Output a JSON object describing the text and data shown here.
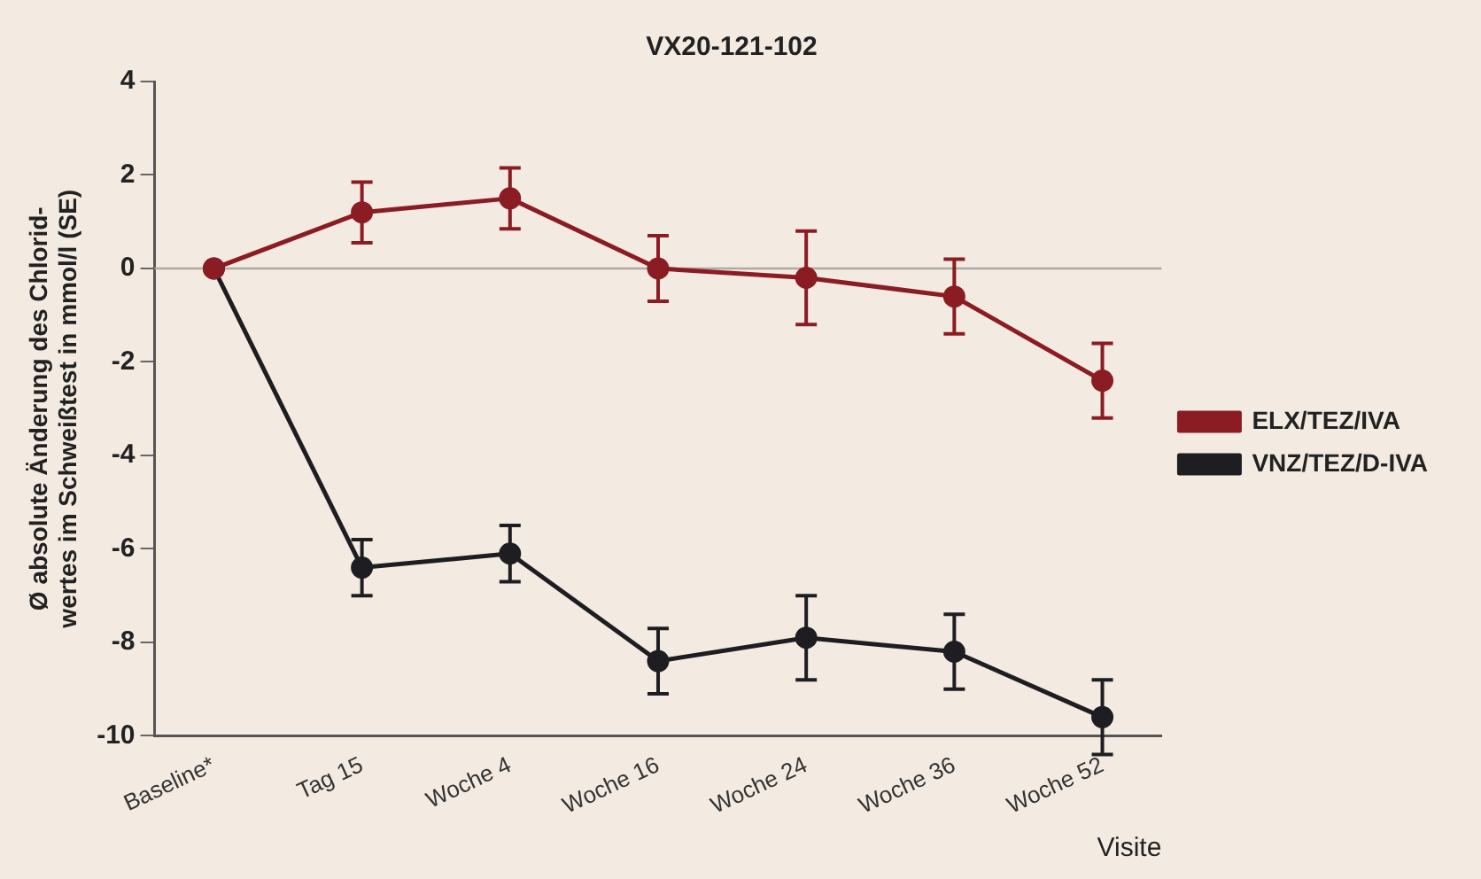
{
  "chart_data": {
    "type": "line",
    "title": "VX20-121-102",
    "xlabel": "Visite",
    "ylabel": "Ø absolute Änderung des Chlorid-\nwertes im Schweißtest in mmol/l (SE)",
    "categories": [
      "Baseline*",
      "Tag 15",
      "Woche 4",
      "Woche 16",
      "Woche 24",
      "Woche 36",
      "Woche 52"
    ],
    "ylim": [
      -10,
      4
    ],
    "yticks": [
      -10,
      -8,
      -6,
      -4,
      -2,
      0,
      2,
      4
    ],
    "series": [
      {
        "name": "ELX/TEZ/IVA",
        "color": "#8b1c24",
        "values": [
          0,
          1.2,
          1.5,
          0,
          -0.2,
          -0.6,
          -2.4
        ],
        "errors": [
          null,
          0.65,
          0.65,
          0.7,
          1.0,
          0.8,
          0.8
        ]
      },
      {
        "name": "VNZ/TEZ/D-IVA",
        "color": "#1e1e22",
        "values": [
          0,
          -6.4,
          -6.1,
          -8.4,
          -7.9,
          -8.2,
          -9.6
        ],
        "errors": [
          null,
          0.6,
          0.6,
          0.7,
          0.9,
          0.8,
          0.8
        ]
      }
    ],
    "ref_lines": [
      {
        "axis": "y",
        "value": 0,
        "color": "#b0aaa4"
      }
    ],
    "marker": "circle",
    "line_style": "solid",
    "grid": false,
    "legend": "right"
  }
}
